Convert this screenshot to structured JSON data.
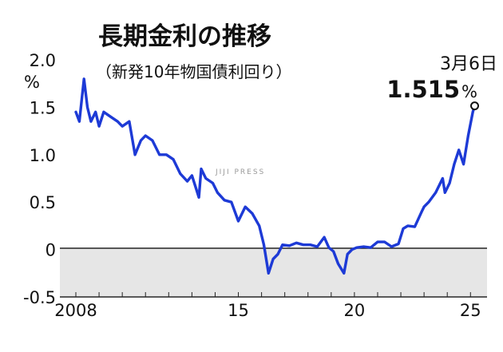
{
  "chart_data": {
    "type": "line",
    "title": "長期金利の推移",
    "subtitle": "（新発10年物国債利回り）",
    "ylabel": "%",
    "ylim": [
      -0.5,
      2.0
    ],
    "yticks": [
      "2.0",
      "1.5",
      "1.0",
      "0.5",
      "0",
      "-0.5"
    ],
    "xlim": [
      2008.0,
      2025.3
    ],
    "xticks": [
      {
        "label": "2008",
        "x": 2008.0
      },
      {
        "label": "15",
        "x": 2015.0
      },
      {
        "label": "20",
        "x": 2020.0
      },
      {
        "label": "25",
        "x": 2025.0
      }
    ],
    "shaded_below_zero": true,
    "series_color": "#1d3ad6",
    "series": [
      {
        "x": [
          2008.0,
          2008.15,
          2008.35,
          2008.5,
          2008.65,
          2008.85,
          2009.0,
          2009.2,
          2009.5,
          2009.8,
          2010.0,
          2010.3,
          2010.55,
          2010.8,
          2011.0,
          2011.3,
          2011.6,
          2011.9,
          2012.2,
          2012.5,
          2012.8,
          2013.0,
          2013.3,
          2013.4,
          2013.6,
          2013.9,
          2014.1,
          2014.4,
          2014.7,
          2015.0,
          2015.3,
          2015.6,
          2015.9,
          2016.1,
          2016.3,
          2016.5,
          2016.7,
          2016.9,
          2017.2,
          2017.5,
          2017.8,
          2018.1,
          2018.4,
          2018.7,
          2018.9,
          2019.1,
          2019.3,
          2019.55,
          2019.7,
          2019.9,
          2020.1,
          2020.4,
          2020.7,
          2021.0,
          2021.3,
          2021.6,
          2021.9,
          2022.1,
          2022.3,
          2022.6,
          2022.9,
          2023.0,
          2023.2,
          2023.5,
          2023.8,
          2023.9,
          2024.1,
          2024.3,
          2024.5,
          2024.7,
          2024.9,
          2025.1,
          2025.18
        ],
        "y": [
          1.45,
          1.35,
          1.8,
          1.5,
          1.35,
          1.45,
          1.3,
          1.45,
          1.4,
          1.35,
          1.3,
          1.35,
          1.0,
          1.15,
          1.2,
          1.15,
          1.0,
          1.0,
          0.95,
          0.8,
          0.72,
          0.78,
          0.55,
          0.85,
          0.75,
          0.7,
          0.6,
          0.52,
          0.5,
          0.3,
          0.45,
          0.38,
          0.25,
          0.05,
          -0.25,
          -0.1,
          -0.05,
          0.05,
          0.04,
          0.07,
          0.05,
          0.05,
          0.03,
          0.13,
          0.02,
          -0.02,
          -0.15,
          -0.25,
          -0.05,
          0.0,
          0.02,
          0.03,
          0.02,
          0.08,
          0.08,
          0.03,
          0.06,
          0.22,
          0.25,
          0.24,
          0.4,
          0.45,
          0.5,
          0.6,
          0.75,
          0.6,
          0.7,
          0.9,
          1.05,
          0.9,
          1.2,
          1.45,
          1.515
        ]
      }
    ],
    "annotation": {
      "date": "3月6日",
      "value": "1.515",
      "unit": "%",
      "x": 2025.18,
      "y": 1.515
    }
  },
  "credit": "JIJI PRESS"
}
